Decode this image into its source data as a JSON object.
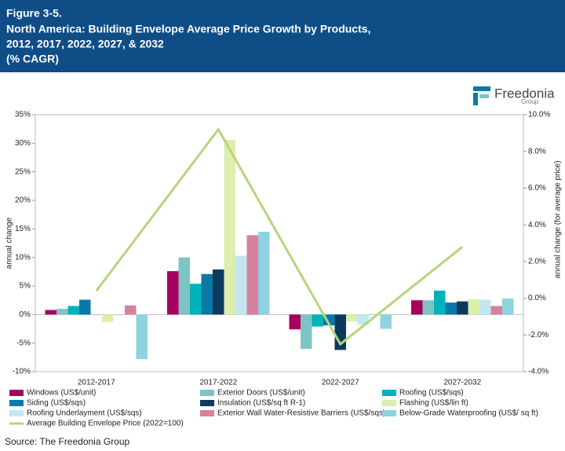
{
  "header": {
    "lines": [
      "Figure 3-5.",
      "North America: Building Envelope Average Price Growth by Products,",
      "2012, 2017, 2022, 2027, & 2032",
      "(% CAGR)"
    ]
  },
  "logo": {
    "name": "Freedonia",
    "sub": "Group"
  },
  "source": "Source: The Freedonia Group",
  "chart_data": {
    "type": "bar",
    "y_label": "annual change",
    "y2_label": "annual change (for average price)",
    "categories": [
      "2012-2017",
      "2017-2022",
      "2022-2027",
      "2027-2032"
    ],
    "ylim": [
      -10,
      35
    ],
    "yticks": [
      {
        "value": -10,
        "label": "-10%"
      },
      {
        "value": -5,
        "label": "-5%"
      },
      {
        "value": 0,
        "label": "0%"
      },
      {
        "value": 5,
        "label": "5%"
      },
      {
        "value": 10,
        "label": "10%"
      },
      {
        "value": 15,
        "label": "15%"
      },
      {
        "value": 20,
        "label": "20%"
      },
      {
        "value": 25,
        "label": "25%"
      },
      {
        "value": 30,
        "label": "30%"
      },
      {
        "value": 35,
        "label": "35%"
      }
    ],
    "y2lim": [
      -4,
      10
    ],
    "y2ticks": [
      {
        "value": -4,
        "label": "-4.0%"
      },
      {
        "value": -2,
        "label": "-2.0%"
      },
      {
        "value": 0,
        "label": "0.0%"
      },
      {
        "value": 2,
        "label": "2.0%"
      },
      {
        "value": 4,
        "label": "4.0%"
      },
      {
        "value": 6,
        "label": "6.0%"
      },
      {
        "value": 8,
        "label": "8.0%"
      },
      {
        "value": 10,
        "label": "10.0%"
      }
    ],
    "series": [
      {
        "name": "Windows (US$/unit)",
        "color": "#a8005e",
        "values": [
          0.8,
          7.6,
          -2.6,
          2.5
        ]
      },
      {
        "name": "Exterior Doors (US$/unit)",
        "color": "#7fc4c4",
        "values": [
          1.0,
          10.0,
          -6.0,
          2.5
        ]
      },
      {
        "name": "Roofing (US$/sqs)",
        "color": "#00b3bb",
        "values": [
          1.5,
          5.4,
          -2.1,
          4.2
        ]
      },
      {
        "name": "Siding (US$/sqs)",
        "color": "#0b78a8",
        "values": [
          2.6,
          7.1,
          -1.9,
          2.1
        ]
      },
      {
        "name": "Insulation (US$/sq ft R-1)",
        "color": "#0c3a5e",
        "values": [
          0,
          7.9,
          -6.2,
          2.3
        ]
      },
      {
        "name": "Flashing (US$/lin ft)",
        "color": "#dcefae",
        "values": [
          -1.3,
          30.6,
          -1.2,
          2.7
        ]
      },
      {
        "name": "Roofing Underlayment (US$/sqs)",
        "color": "#c3e7f2",
        "values": [
          0,
          10.3,
          -1.8,
          2.6
        ]
      },
      {
        "name": "Exterior Wall Water-Resistive Barriers (US$/sqs)",
        "color": "#d7819f",
        "values": [
          1.6,
          13.9,
          0,
          1.5
        ]
      },
      {
        "name": "Below-Grade Waterproofing (US$/ sq ft)",
        "color": "#8fd2e0",
        "values": [
          -7.8,
          14.5,
          -2.5,
          2.8
        ]
      },
      {
        "name": "Average Building Envelope Price (2022=100)",
        "color": "#b5d67a",
        "type": "line",
        "axis": "y2",
        "values": [
          0.4,
          9.2,
          -2.5,
          2.8
        ]
      }
    ]
  }
}
